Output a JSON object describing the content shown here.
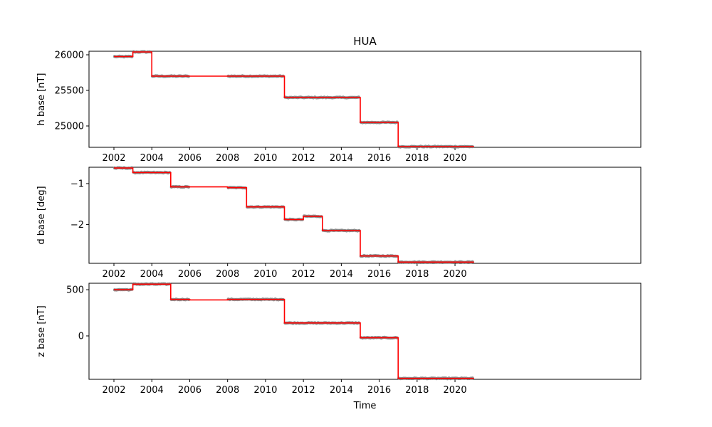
{
  "chart_data": {
    "type": "line",
    "title": "HUA",
    "xlabel": "Time",
    "x_ticks": [
      "2002",
      "2004",
      "2006",
      "2008",
      "2010",
      "2012",
      "2014",
      "2016",
      "2018",
      "2020"
    ],
    "colors": {
      "points": "#808080",
      "line": "#ff0000"
    },
    "subplots": [
      {
        "ylabel": "h base [nT]",
        "ylim": [
          24700,
          26050
        ],
        "y_ticks": [
          25000,
          25500,
          26000
        ],
        "y_tick_labels": [
          "25000",
          "25500",
          "26000"
        ],
        "segments": [
          {
            "x": [
              2002.0,
              2003.0
            ],
            "value": 25975
          },
          {
            "x": [
              2003.0,
              2004.0
            ],
            "value": 26040
          },
          {
            "x": [
              2004.0,
              2006.0
            ],
            "value": 25700,
            "points": true
          },
          {
            "x": [
              2006.0,
              2008.0
            ],
            "value": 25700,
            "points": false
          },
          {
            "x": [
              2008.0,
              2011.0
            ],
            "value": 25700
          },
          {
            "x": [
              2011.0,
              2015.0
            ],
            "value": 25400
          },
          {
            "x": [
              2015.0,
              2017.0
            ],
            "value": 25050
          },
          {
            "x": [
              2017.0,
              2021.0
            ],
            "value": 24710
          }
        ]
      },
      {
        "ylabel": "d base [deg]",
        "ylim": [
          -2.95,
          -0.6
        ],
        "y_ticks": [
          -2,
          -1
        ],
        "y_tick_labels": [
          "−2",
          "−1"
        ],
        "segments": [
          {
            "x": [
              2002.0,
              2003.0
            ],
            "value": -0.62
          },
          {
            "x": [
              2003.0,
              2005.0
            ],
            "value": -0.73
          },
          {
            "x": [
              2005.0,
              2006.0
            ],
            "value": -1.08,
            "points": true
          },
          {
            "x": [
              2006.0,
              2008.0
            ],
            "value": -1.08,
            "points": false
          },
          {
            "x": [
              2008.0,
              2009.0
            ],
            "value": -1.1
          },
          {
            "x": [
              2009.0,
              2011.0
            ],
            "value": -1.57
          },
          {
            "x": [
              2011.0,
              2012.0
            ],
            "value": -1.88
          },
          {
            "x": [
              2012.0,
              2013.0
            ],
            "value": -1.8
          },
          {
            "x": [
              2013.0,
              2015.0
            ],
            "value": -2.15
          },
          {
            "x": [
              2015.0,
              2017.0
            ],
            "value": -2.77
          },
          {
            "x": [
              2017.0,
              2021.0
            ],
            "value": -2.92
          }
        ]
      },
      {
        "ylabel": "z base [nT]",
        "ylim": [
          -470,
          570
        ],
        "y_ticks": [
          0,
          500
        ],
        "y_tick_labels": [
          "0",
          "500"
        ],
        "segments": [
          {
            "x": [
              2002.0,
              2003.0
            ],
            "value": 500
          },
          {
            "x": [
              2003.0,
              2005.0
            ],
            "value": 560
          },
          {
            "x": [
              2005.0,
              2006.0
            ],
            "value": 395,
            "points": true
          },
          {
            "x": [
              2006.0,
              2008.0
            ],
            "value": 390,
            "points": false
          },
          {
            "x": [
              2008.0,
              2011.0
            ],
            "value": 395
          },
          {
            "x": [
              2011.0,
              2015.0
            ],
            "value": 140
          },
          {
            "x": [
              2015.0,
              2017.0
            ],
            "value": -20
          },
          {
            "x": [
              2017.0,
              2021.0
            ],
            "value": -460
          }
        ]
      }
    ]
  }
}
